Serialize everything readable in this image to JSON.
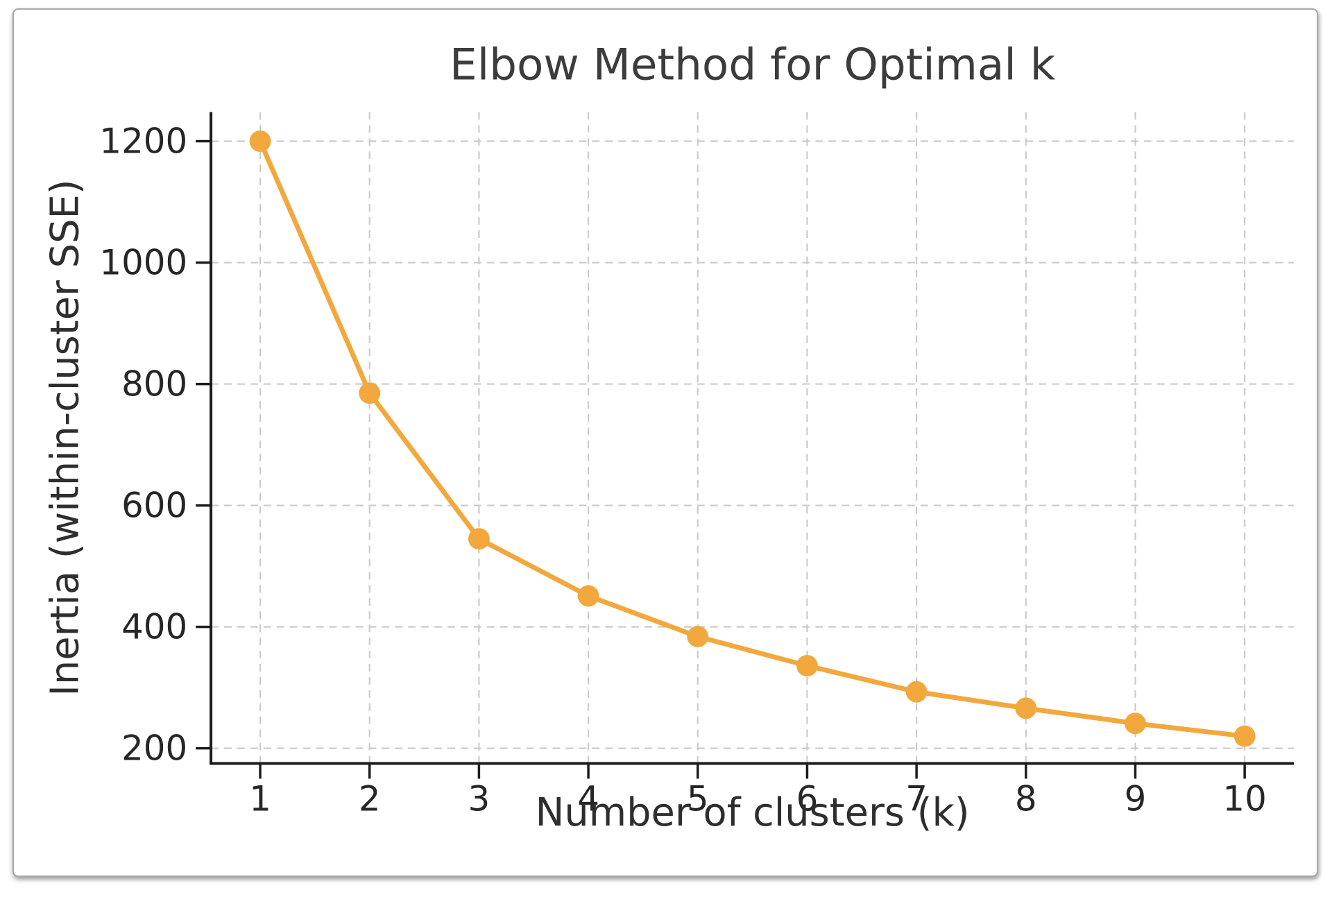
{
  "chart_data": {
    "type": "line",
    "title": "Elbow Method for Optimal k",
    "xlabel": "Number of clusters (k)",
    "ylabel": "Inertia (within-cluster SSE)",
    "series": [
      {
        "name": "Inertia",
        "x": [
          1,
          2,
          3,
          4,
          5,
          6,
          7,
          8,
          9,
          10
        ],
        "values": [
          1200,
          785,
          545,
          451,
          384,
          336,
          293,
          266,
          241,
          220
        ]
      }
    ],
    "x_ticks": [
      "1",
      "2",
      "3",
      "4",
      "5",
      "6",
      "7",
      "8",
      "9",
      "10"
    ],
    "y_ticks": [
      200,
      400,
      600,
      800,
      1000,
      1200
    ],
    "xlim": [
      0.55,
      10.45
    ],
    "ylim": [
      175,
      1248
    ],
    "grid": "dashed both",
    "legend_position": "none",
    "marker": "circle",
    "colors": {
      "line": "#F2A83D",
      "marker": "#F2A83D",
      "grid": "#cbcbcb",
      "spine": "#1c1c1c",
      "tick_text": "#262626",
      "title_text": "#3c3c3c"
    }
  }
}
